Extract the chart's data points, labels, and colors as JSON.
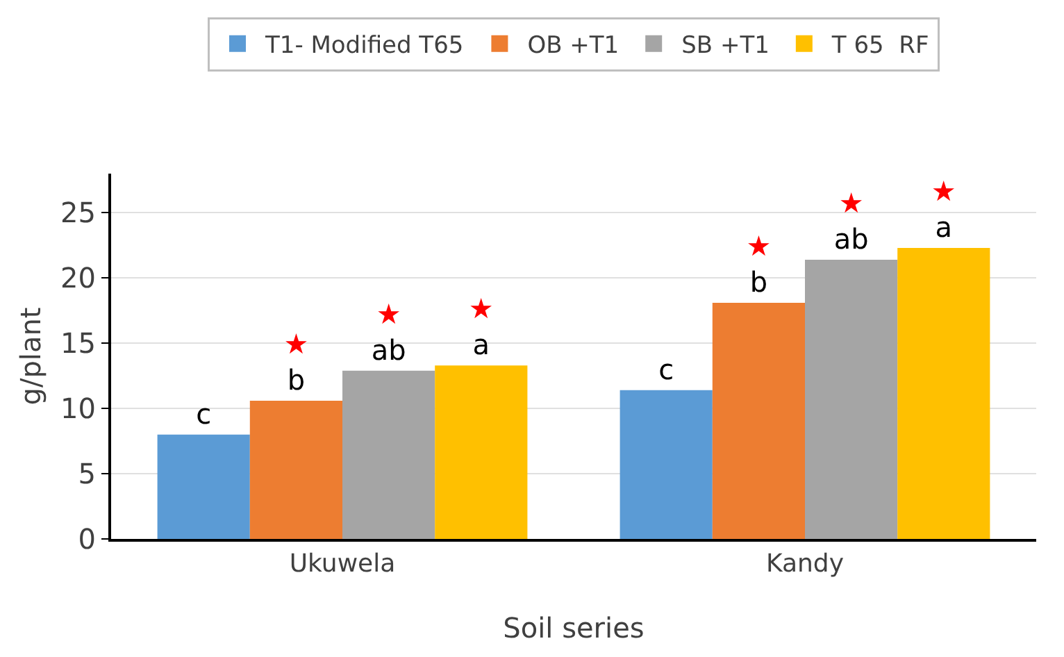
{
  "chart_data": {
    "type": "bar",
    "xlabel": "Soil series",
    "ylabel": "g/plant",
    "categories": [
      "Ukuwela",
      "Kandy"
    ],
    "series": [
      {
        "name": "T1- Modified T65",
        "color": "#5b9bd5",
        "values": [
          8.0,
          11.4
        ],
        "value_labels": [
          "c",
          "c"
        ]
      },
      {
        "name": "OB +T1",
        "color": "#ed7d31",
        "values": [
          10.6,
          18.1
        ],
        "value_labels": [
          "★\nb",
          "★\nb"
        ]
      },
      {
        "name": "SB +T1",
        "color": "#a5a5a5",
        "values": [
          12.9,
          21.4
        ],
        "value_labels": [
          "★\nab",
          "★\nab"
        ]
      },
      {
        "name": "T 65  RF",
        "color": "#ffc000",
        "values": [
          13.3,
          22.3
        ],
        "value_labels": [
          "★\na",
          "★\na"
        ]
      }
    ],
    "ylim": [
      0,
      28
    ],
    "yticks": [
      0,
      5,
      10,
      15,
      20,
      25
    ],
    "grid": "y",
    "legend": "top"
  }
}
